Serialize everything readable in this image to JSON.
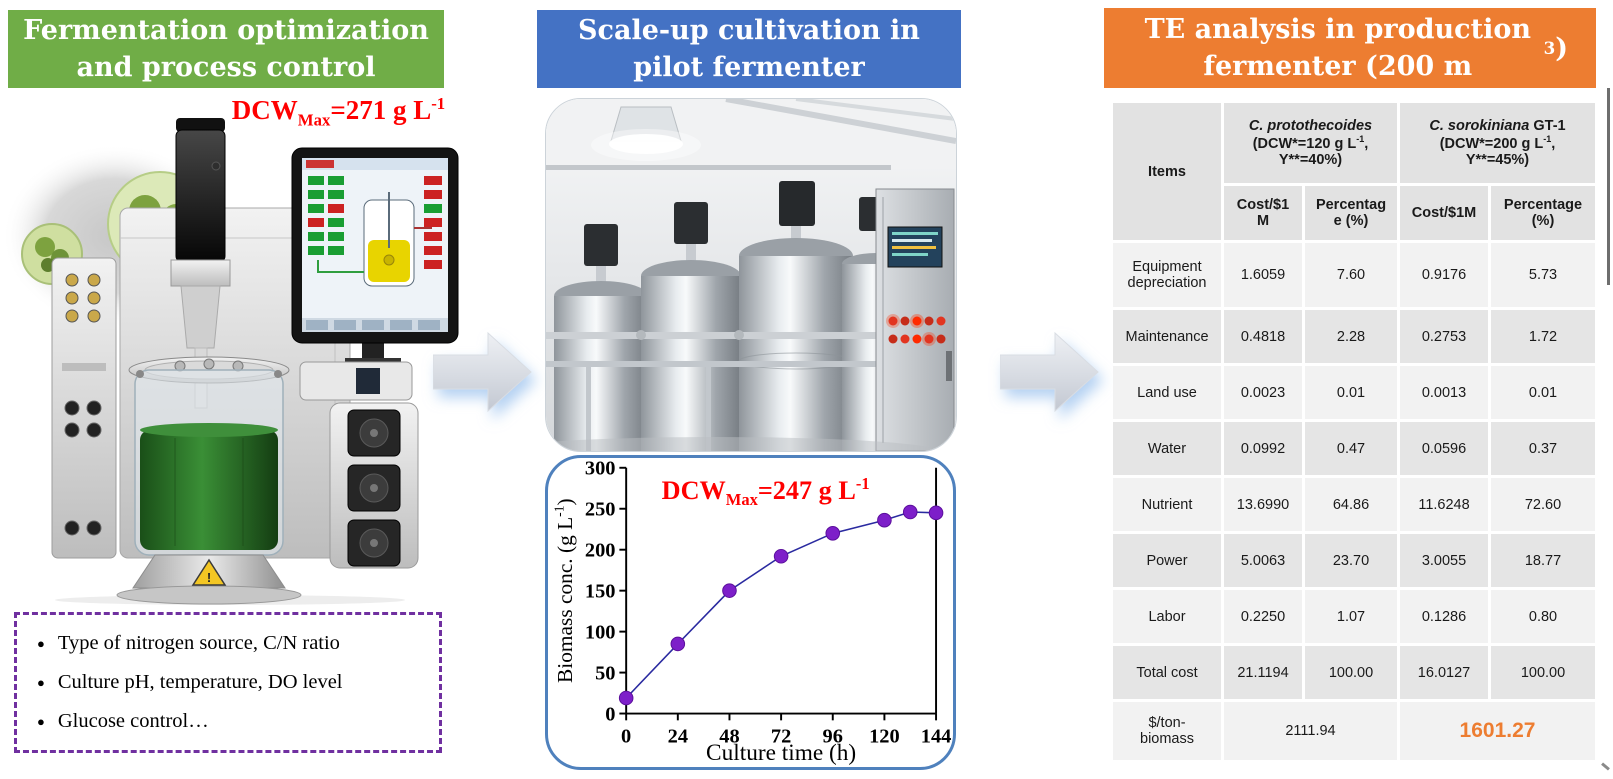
{
  "panels": {
    "left": {
      "header": "Fermentation optimization and process control",
      "header_bg": "#70AD47",
      "dcw_color": "#FF0000",
      "dcw_segments": [
        {
          "t": "DCW"
        },
        {
          "t": "Max",
          "c": "sub"
        },
        {
          "t": "=271 g L"
        },
        {
          "t": "-1",
          "c": "sup"
        }
      ],
      "bullet_glyph": "●",
      "bullets": [
        "Type of nitrogen source, C/N ratio",
        "Culture pH, temperature, DO level",
        "Glucose control…"
      ]
    },
    "middle": {
      "header": "Scale-up cultivation in pilot fermenter",
      "header_bg": "#4472C4"
    },
    "right": {
      "header_segments": [
        {
          "t": "TE analysis in production fermenter (200 m"
        },
        {
          "t": "3",
          "c": "sup"
        },
        {
          "t": ")"
        }
      ],
      "header_bg": "#ED7D31"
    }
  },
  "chart_data": {
    "type": "line",
    "title": "",
    "xlabel": "Culture time (h)",
    "ylabel_segments": [
      {
        "t": "Biomass conc. (g L"
      },
      {
        "t": "-1",
        "c": "sup"
      },
      {
        "t": ")"
      }
    ],
    "annotation_segments": [
      {
        "t": "DCW"
      },
      {
        "t": "Max",
        "c": "sub"
      },
      {
        "t": "=247 g L"
      },
      {
        "t": "-1",
        "c": "sup"
      }
    ],
    "annotation_color": "#FF0000",
    "x": [
      0,
      24,
      48,
      72,
      96,
      120,
      132,
      144
    ],
    "y": [
      19,
      85,
      150,
      192,
      220,
      236,
      246,
      245
    ],
    "xticks": [
      0,
      24,
      48,
      72,
      96,
      120,
      144
    ],
    "yticks": [
      0,
      50,
      100,
      150,
      200,
      250,
      300
    ],
    "xlim": [
      0,
      144
    ],
    "ylim": [
      0,
      300
    ],
    "grid": false,
    "legend": "none",
    "line_color": "#2A2AA0",
    "marker_color": "#7D1FC9"
  },
  "table": {
    "items_header": "Items",
    "group_headers": [
      {
        "segments": [
          {
            "t": "C. protothecoides",
            "c": "it"
          },
          {
            "t": "\n(DCW*=120 g L"
          },
          {
            "t": "-1",
            "c": "sup"
          },
          {
            "t": ",\nY**=40%)"
          }
        ]
      },
      {
        "segments": [
          {
            "t": "C. sorokiniana",
            "c": "it"
          },
          {
            "t": " GT-1\n(DCW*=200 g L"
          },
          {
            "t": "-1",
            "c": "sup"
          },
          {
            "t": ",\nY**=45%)"
          }
        ]
      }
    ],
    "sub_headers": [
      "Cost/$1\nM",
      "Percentag\ne (%)",
      "Cost/$1M",
      "Percentage\n(%)"
    ],
    "rows": [
      {
        "label": "Equipment depreciation",
        "values": [
          "1.6059",
          "7.60",
          "0.9176",
          "5.73"
        ]
      },
      {
        "label": "Maintenance",
        "values": [
          "0.4818",
          "2.28",
          "0.2753",
          "1.72"
        ]
      },
      {
        "label": "Land use",
        "values": [
          "0.0023",
          "0.01",
          "0.0013",
          "0.01"
        ]
      },
      {
        "label": "Water",
        "values": [
          "0.0992",
          "0.47",
          "0.0596",
          "0.37"
        ]
      },
      {
        "label": "Nutrient",
        "values": [
          "13.6990",
          "64.86",
          "11.6248",
          "72.60"
        ]
      },
      {
        "label": "Power",
        "values": [
          "5.0063",
          "23.70",
          "3.0055",
          "18.77"
        ]
      },
      {
        "label": "Labor",
        "values": [
          "0.2250",
          "1.07",
          "0.1286",
          "0.80"
        ]
      },
      {
        "label": "Total cost",
        "values": [
          "21.1194",
          "100.00",
          "16.0127",
          "100.00"
        ]
      }
    ],
    "footer": {
      "label": "$/ton-\nbiomass",
      "left_value": "2111.94",
      "right_value": "1601.27",
      "highlight_color": "#ED7D31"
    }
  }
}
